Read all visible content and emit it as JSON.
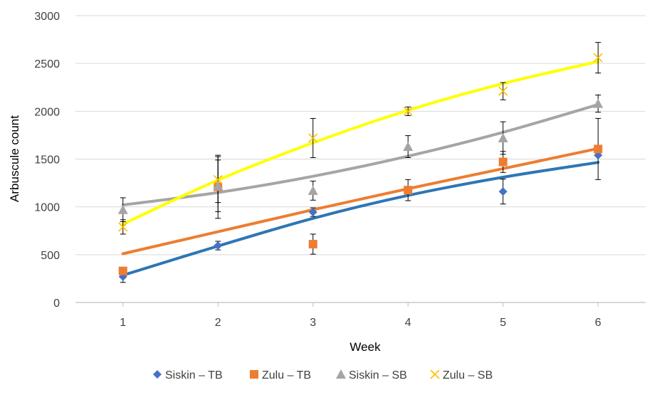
{
  "chart_data": {
    "type": "scatter",
    "title": "",
    "xlabel": "Week",
    "ylabel": "Arbuscule count",
    "x": [
      1,
      2,
      3,
      4,
      5,
      6
    ],
    "xlim": [
      0.5,
      6.5
    ],
    "ylim": [
      0,
      3000
    ],
    "yticks": [
      0,
      500,
      1000,
      1500,
      2000,
      2500,
      3000
    ],
    "grid": "horizontal",
    "legend_position": "bottom",
    "series": [
      {
        "name": "Siskin – TB",
        "marker": "diamond",
        "color": "#4472C4",
        "trend_color": "#2E75B6",
        "values": [
          270,
          595,
          945,
          1185,
          1160,
          1540
        ],
        "error": [
          60,
          45,
          45,
          0,
          130,
          0
        ],
        "trendline": [
          285,
          590,
          880,
          1120,
          1310,
          1465
        ]
      },
      {
        "name": "Zulu – TB",
        "marker": "square",
        "color": "#ED7D31",
        "trend_color": "#ED7D31",
        "values": [
          330,
          1210,
          610,
          1175,
          1470,
          1605
        ],
        "error": [
          0,
          330,
          105,
          110,
          110,
          320
        ],
        "trendline": [
          510,
          740,
          970,
          1190,
          1400,
          1610
        ]
      },
      {
        "name": "Siskin – SB",
        "marker": "triangle",
        "color": "#A5A5A5",
        "trend_color": "#A5A5A5",
        "values": [
          970,
          1220,
          1170,
          1630,
          1720,
          2080
        ],
        "error": [
          125,
          270,
          100,
          115,
          170,
          90
        ],
        "trendline": [
          1020,
          1150,
          1320,
          1530,
          1780,
          2070
        ]
      },
      {
        "name": "Zulu – SB",
        "marker": "x",
        "color": "#FFC000",
        "trend_color": "#FFFF00",
        "values": [
          790,
          1285,
          1720,
          2000,
          2210,
          2560
        ],
        "error": [
          75,
          240,
          205,
          45,
          90,
          160
        ],
        "trendline": [
          820,
          1280,
          1670,
          2010,
          2290,
          2520
        ]
      }
    ]
  }
}
